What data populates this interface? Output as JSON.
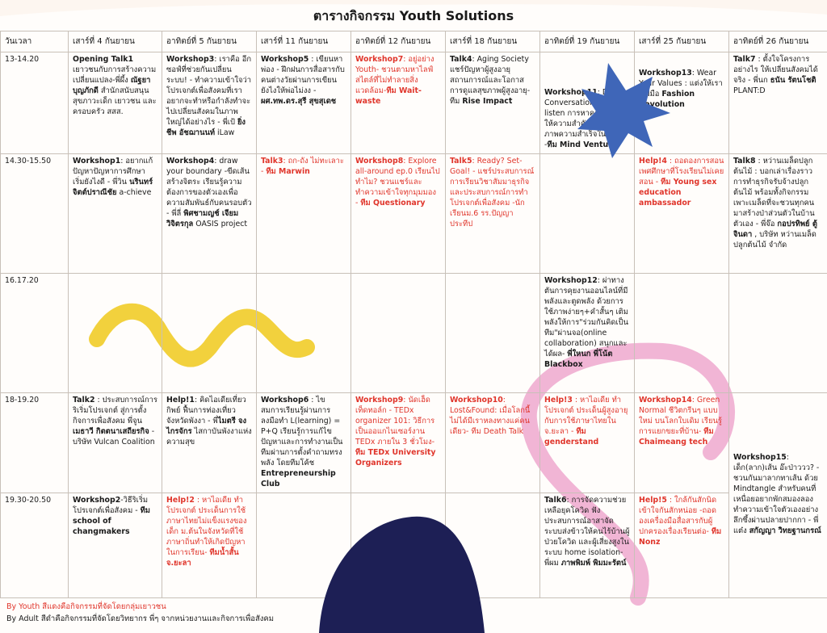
{
  "title": "ตารางกิจกรรม Youth Solutions",
  "colors": {
    "youth_red": "#e0352b",
    "star_blue": "#3f66b8",
    "squiggle_yellow": "#f2d13d",
    "loop_pink": "#ec9cc8",
    "hill_navy": "#1d1f55"
  },
  "header": {
    "time_col": "วันเวลา",
    "days": [
      "เสาร์ที่ 4 กันยายน",
      "อาทิตย์ที่ 5 กันยายน",
      "เสาร์ที่ 11 กันยายน",
      "อาทิตย์ที่ 12 กันยายน",
      "เสาร์ที่ 18 กันยายน",
      "อาทิตย์ที่ 19 กันยายน",
      "เสาร์ที่ 25 กันยายน",
      "อาทิตย์ที่ 26 กันยายน"
    ]
  },
  "times": [
    "13-14.20",
    "14.30-15.50",
    "16.17.20",
    "18-19.20",
    "19.30-20.50"
  ],
  "cells": {
    "r1c1": [
      {
        "t": "Opening Talk1",
        "b": true
      },
      {
        "t": " เยาวชนกับการสร้างความเปลี่ยนแปลง-พี่ผึ้ง "
      },
      {
        "t": "ณัฐยา บุญภักดี",
        "b": true
      },
      {
        "t": " สำนักสนับสนุนสุขภาวะเด็ก เยาวชน และครอบครัว สสส."
      }
    ],
    "r1c2": [
      {
        "t": "Workshop3",
        "b": true
      },
      {
        "t": ": เราคือ อีกซอฟ์ที่ช่วยกันเปลี่ยนระบบ! - ทำความเข้าใจว่าโปรเจกต์เพื่อสังคมที่เราอยากจะทำหรือกำลังทำจะไปเปลี่ยนสังคมในภาพใหญ่ได้อย่างไร - พี่เป้ "
      },
      {
        "t": "ยิ่งชีพ อัชฌานนท์",
        "b": true
      },
      {
        "t": " iLaw"
      }
    ],
    "r1c3": [
      {
        "t": "Workshop5",
        "b": true
      },
      {
        "t": " : เขียนหาพ่อง - ฝึกฝนการสื่อสารกับคนต่างวัยผ่านการเขียน ยังไงให้พ่อไม่งง - "
      },
      {
        "t": "ผศ.ทพ.ดร.สุรี สุขสุเดช",
        "b": true
      }
    ],
    "r1c4": [
      {
        "t": "Workshop7",
        "b": true
      },
      {
        "t": ": อยู่อย่าง Youth- ชวนตามหาไลฟ์สไตล์ที่ไม่ทำลายสิ่งแวดล้อม-"
      },
      {
        "t": "ทีม Wait-waste",
        "b": true
      }
    ],
    "r1c5": [
      {
        "t": "Talk4",
        "b": true
      },
      {
        "t": ": Aging Society แชร์ปัญหาผู้สูงอายุ สถานการณ์และโอกาสการดูแลสุขภาพผู้สูงอายุ-ทีม "
      },
      {
        "t": "Rise Impact",
        "b": true
      }
    ],
    "r1c6": [
      {
        "t": "Workshop11",
        "b": true
      },
      {
        "t": ": Deep Conversation-active listen การหาคุณค่าที่เราให้ความสำคัญ เพื่อสร้างภาพความสำเร็จในชีวิต -"
      },
      {
        "t": "ทีม Mind Venture",
        "b": true
      }
    ],
    "r1c7": [
      {
        "t": "Workshop13",
        "b": true
      },
      {
        "t": ": Wear Your Values : แต่งให้เรารู้ ฝีมือ "
      },
      {
        "t": "Fashion Revolution",
        "b": true
      }
    ],
    "r1c8": [
      {
        "t": "Talk7",
        "b": true
      },
      {
        "t": " : ตั้งใจโครงการอย่างไร ให้เปลี่ยนสังคมได้จริง - พี่นก "
      },
      {
        "t": "ธนัน รัตนโชติ",
        "b": true
      },
      {
        "t": " PLANT:D"
      }
    ],
    "r2c1": [
      {
        "t": "Workshop1",
        "b": true
      },
      {
        "t": ": อยากแก้ปัญหาปัญหาการศึกษา เริ่มยังไงดี - พี่วิน "
      },
      {
        "t": "นรินทร์ จิตต์ปราณีชัย",
        "b": true
      },
      {
        "t": " a-chieve"
      }
    ],
    "r2c2": [
      {
        "t": "Workshop4",
        "b": true
      },
      {
        "t": ": draw your boundary -ขีดเส้นสร้างจิตระ เรียนรู้ความต้องการของตัวเองเพื่อความสัมพันธ์กับคนรอบตัว - พี่ลี่ "
      },
      {
        "t": "พิศชามญช์ เจียมวิจิตรกุล",
        "b": true
      },
      {
        "t": " OASIS project"
      }
    ],
    "r2c3": [
      {
        "t": "Talk3",
        "b": true
      },
      {
        "t": ": ถก-ถัง ไม่ทะเลาะ - "
      },
      {
        "t": "ทีม Marwin",
        "b": true
      }
    ],
    "r2c4": [
      {
        "t": "Workshop8",
        "b": true
      },
      {
        "t": ": Explore all-around ep.0 เรียนไปทำไม? ชวนแชร์และทำความเข้าใจทุกมุมมอง - "
      },
      {
        "t": "ทีม Questionary",
        "b": true
      }
    ],
    "r2c5": [
      {
        "t": "Talk5",
        "b": true
      },
      {
        "t": ": Ready? Set-Goal! - แชร์ประสบการณ์การเรียนวิชาสัมมาธุรกิจ และประสบการณ์การทำโปรเจกต์เพื่อสังคม -นักเรียนม.6 รร.ปัญญาประทีป"
      }
    ],
    "r2c6": [],
    "r2c7": [
      {
        "t": "Help!4",
        "b": true
      },
      {
        "t": " : ถอดองการสอนเพศศึกษาที่โรงเรียนไม่เคยสอน - "
      },
      {
        "t": "ทีม Young sex education ambassador",
        "b": true
      }
    ],
    "r2c8": [
      {
        "t": "Talk8",
        "b": true
      },
      {
        "t": " : หว่านเมล็ดปลูกต้นไม้ : บอกเล่าเรื่องราวการทำธุรกิจรับจ้างปลูกต้นไม้ พร้อมทั้งกิจกรรมเพาะเมล็ดที่จะชวนทุกคนมาสร้างป่าส่วนตัวในบ้านตัวเอง - พี่จ๊อ "
      },
      {
        "t": "กอปรทิพย์ ตู้จินดา",
        "b": true
      },
      {
        "t": " , บริษัท หว่านเมล็ด ปลูกต้นไม้ จำกัด"
      }
    ],
    "r3c6": [
      {
        "t": "Workshop12",
        "b": true
      },
      {
        "t": ": ผ่าทางตันการคุยงานออนไลน์ที่มีพลังและตูดพลัง ด้วยการใช้ภาพง่ายๆ+คำสั้นๆ เติมพลังให้การ\"ร่วมกันคิดเป็นทีม\"ผ่านจอ(online collaboration) สนุกและได้ผล- "
      },
      {
        "t": "พี่ใหนก พี่โน้ต Blackbox",
        "b": true
      }
    ],
    "r4c1": [
      {
        "t": "Talk2",
        "b": true
      },
      {
        "t": " : ประสบการณ์การริเริ่มโปรเจกต์ สู่การตั้งกิจการเพื่อสังคม พี่จูน "
      },
      {
        "t": "เมธาวี กิตตนาเสถียรกิจ",
        "b": true
      },
      {
        "t": " - บริษัท Vulcan Coalition"
      }
    ],
    "r4c2": [
      {
        "t": "Help!1",
        "b": true
      },
      {
        "t": ": คิดไอเดียเที่ยวกิพย์ ฟื้นการท่องเที่ยวจังหวัดพังงา - พี่"
      },
      {
        "t": "ไมตรี จงไกรจักร",
        "b": true
      },
      {
        "t": " ไสกาบันพังงาแห่งความสุข"
      }
    ],
    "r4c3": [
      {
        "t": "Workshop6",
        "b": true
      },
      {
        "t": " : ไขสมการเรียนรู้ผ่านการลงมือทำ L(learning) = P+Q เรียนรู้การแก้ไขปัญหาและการทำงานเป็นทีมผ่านการตั้งคำถามทรงพลัง โดยทีมโค้ช "
      },
      {
        "t": "Entrepreneurship Club",
        "b": true
      }
    ],
    "r4c4": [
      {
        "t": "Workshop9",
        "b": true
      },
      {
        "t": ": นัดเฮ็ดเท็ดทอล์ก - TEDx organizer 101: วิธีการเป็นออแกไนเซอร์งาน TEDx ภายใน 3 ชั่วโมง-"
      },
      {
        "t": "ทีม TEDx University Organizers",
        "b": true
      }
    ],
    "r4c5": [
      {
        "t": "Workshop10",
        "b": true
      },
      {
        "t": ": Lost&Found: เมื่อโลกนี้ไม่ได้มีเราหลงทางแค่คนเดียว- ทีม Death Talk"
      }
    ],
    "r4c6": [
      {
        "t": "Help!3",
        "b": true
      },
      {
        "t": " : หาไอเดีย ทำโปรเจกต์ ประเด็นผู้สูงอายุกับการใช้ภาษาไทยใน จ.ยะลา - "
      },
      {
        "t": "ทีม genderstand",
        "b": true
      }
    ],
    "r4c7": [
      {
        "t": "Workshop14",
        "b": true
      },
      {
        "t": ": Green Normal ชีวิตกรีนๆ แบบใหม่ บนโลกใบเดิม เรียนรู้การแยกขยะที่บ้าน- "
      },
      {
        "t": "ทีม Chaimeang tech",
        "b": true
      }
    ],
    "r4c8": [
      {
        "t": "Workshop15",
        "b": true
      },
      {
        "t": ": เด็ก(ลาก)เส้น อ๊ะป่าววว? - ชวนกันมาลากทาเส้น ด้วย Mindtangle สำหรับคนที่เหนื่อยอยากพักสมองลองทำความเข้าใจตัวเองอย่างลึกซึ้งผ่านปลายปากกา - พี่แต๋ง "
      },
      {
        "t": "สกัญญา วิทยฐานกรณ์",
        "b": true
      }
    ],
    "r5c1": [
      {
        "t": "Workshop2",
        "b": true
      },
      {
        "t": "-วิธีริเริ่มโปรเจกต์เพื่อสังคม - "
      },
      {
        "t": "ทีม school of changmakers",
        "b": true
      }
    ],
    "r5c2": [
      {
        "t": "Help!2",
        "b": true
      },
      {
        "t": " : หาไอเดีย ทำโปรเจกต์ ประเด็นการใช้ภาษาไทยไม่แข็งแรงของเด็ก ม.ต้นในจังหวัดที่ใช้ภาษาถิ่นทำให้เกิดปัญหาในการเรียน- "
      },
      {
        "t": "ทีมน้ำสั้น จ.ยะลา",
        "b": true
      }
    ],
    "r5c3": [],
    "r5c4": [],
    "r5c5": [],
    "r5c6": [
      {
        "t": "Talk6",
        "b": true
      },
      {
        "t": ": การจัดความช่วยเหลือยุคโควิด ฟังประสบการณ์อาสาจัดระบบส่งข้าวให้คนไร้บ้านผู้ป่วยโควิด และผู้เสี่ยงสูงในระบบ home isolation- พี่ผม "
      },
      {
        "t": "ภาพพิมพ์ พิมมะรัตน์",
        "b": true
      }
    ],
    "r5c7": [
      {
        "t": "Help!5",
        "b": true
      },
      {
        "t": " : ใกล้กันสักนิด เข้าใจกันสักหน่อย -ถอดองเครื่องมือสื่อสารกับผู้ปกครองเรื่องเรียนต่อ- "
      },
      {
        "t": "ทีม Nonz",
        "b": true
      }
    ]
  },
  "footer": {
    "line1": "By Youth สีแดงคือกิจกรรมที่จัดโดยกลุ่มเยาวชน",
    "line2": "By Adult สีดำคือกิจกรรมที่จัดโดยวิทยากร พี่ๆ จากหน่วยงานและกิจการเพื่อสังคม"
  }
}
